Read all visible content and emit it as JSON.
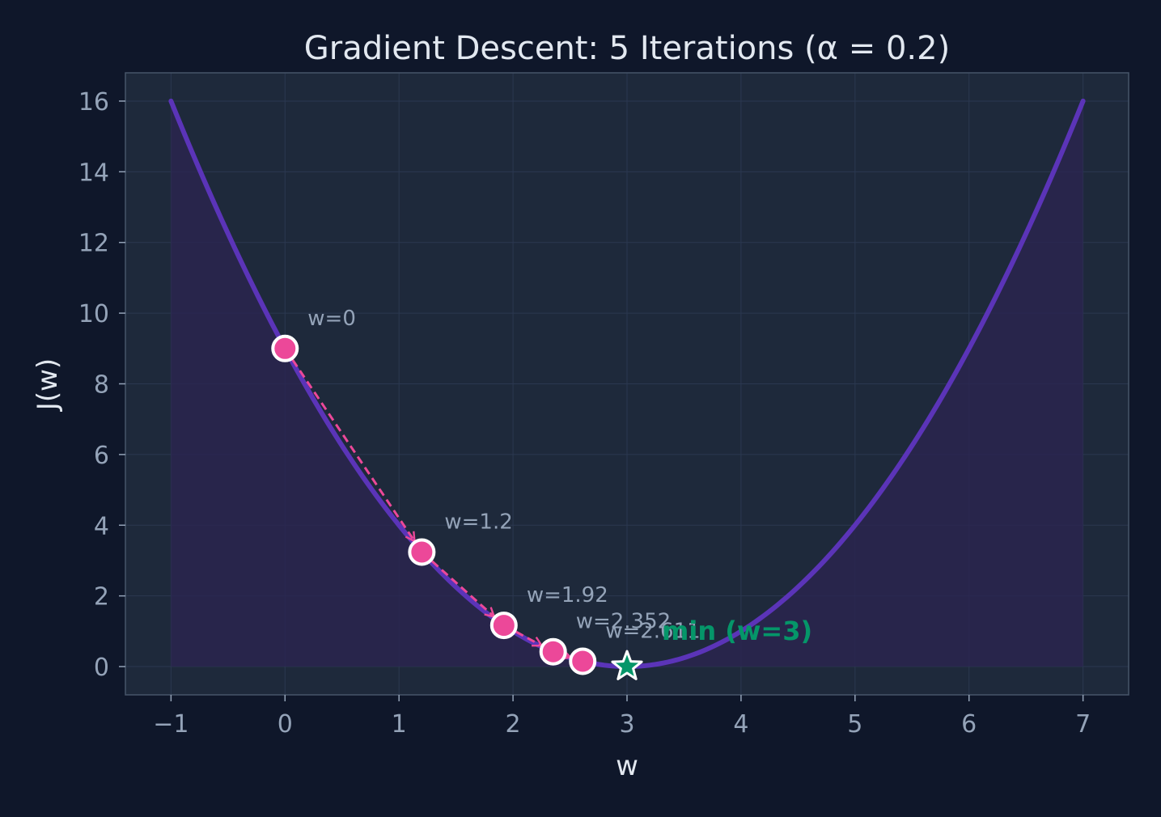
{
  "chart_data": {
    "type": "line",
    "title": "Gradient Descent: 5 Iterations (α = 0.2)",
    "xlabel": "w",
    "ylabel": "J(w)",
    "xlim": [
      -1.4,
      7.4
    ],
    "ylim": [
      -0.8,
      16.8
    ],
    "xticks": [
      -1,
      0,
      1,
      2,
      3,
      4,
      5,
      6,
      7
    ],
    "xtick_labels": [
      "−1",
      "0",
      "1",
      "2",
      "3",
      "4",
      "5",
      "6",
      "7"
    ],
    "yticks": [
      0,
      2,
      4,
      6,
      8,
      10,
      12,
      14,
      16
    ],
    "ytick_labels": [
      "0",
      "2",
      "4",
      "6",
      "8",
      "10",
      "12",
      "14",
      "16"
    ],
    "grid": true,
    "curve": {
      "function": "(w - 3)^2",
      "x_range": [
        -1,
        7
      ]
    },
    "iterates": [
      {
        "w": 0,
        "J": 9,
        "label": "w=0"
      },
      {
        "w": 1.2,
        "J": 3.24,
        "label": "w=1.2"
      },
      {
        "w": 1.92,
        "J": 1.1664,
        "label": "w=1.92"
      },
      {
        "w": 2.352,
        "J": 0.4199,
        "label": "w=2.352"
      },
      {
        "w": 2.6112,
        "J": 0.1512,
        "label": "w=2.611"
      }
    ],
    "minimum": {
      "w": 3,
      "J": 0,
      "label": "min (w=3)"
    },
    "colors": {
      "background": "#0f172a",
      "plot_bg": "#1e293b",
      "curve": "#5b34b8",
      "fill": "#2a2450",
      "points": "#ec4899",
      "arrows": "#ec4899",
      "minimum": "#059669",
      "text": "#e2e8f0",
      "tick_text": "#94a3b8",
      "annotation_text": "#94a3b8"
    }
  }
}
